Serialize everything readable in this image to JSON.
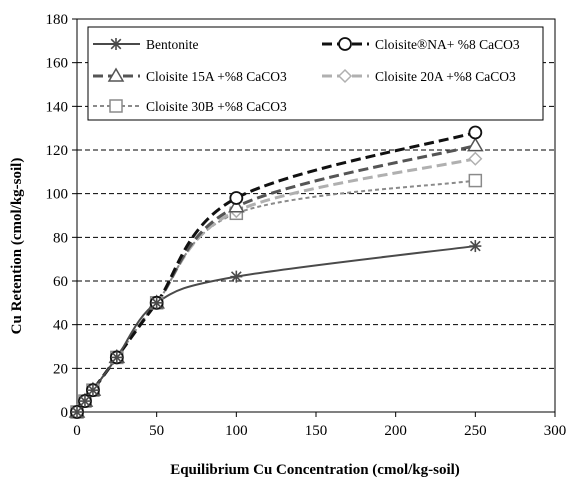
{
  "chart_data": {
    "type": "line",
    "xlabel": "Equilibrium Cu Concentration (cmol/kg-soil)",
    "ylabel": "Cu Retention (cmol/kg-soil)",
    "xlim": [
      0,
      300
    ],
    "ylim": [
      0,
      180
    ],
    "xticks": [
      "0",
      "50",
      "100",
      "150",
      "200",
      "250",
      "300"
    ],
    "yticks": [
      "0",
      "20",
      "40",
      "60",
      "80",
      "100",
      "120",
      "140",
      "160",
      "180"
    ],
    "grid": "horizontal dashed",
    "legend_position": "top inside",
    "series": [
      {
        "name": "Bentonite",
        "marker": "asterisk",
        "color": "#4a4a4a",
        "line_style": "solid",
        "x": [
          0,
          5,
          10,
          25,
          50,
          100,
          250
        ],
        "y": [
          0,
          5,
          10,
          25,
          50,
          62,
          76
        ]
      },
      {
        "name": "Cloisite®NA+ %8 CaCO3",
        "marker": "circle",
        "color": "#111111",
        "line_style": "dashed",
        "x": [
          0,
          5,
          10,
          25,
          50,
          100,
          250
        ],
        "y": [
          0,
          5,
          10,
          25,
          50,
          98,
          128
        ]
      },
      {
        "name": "Cloisite 15A +%8 CaCO3",
        "marker": "triangle",
        "color": "#555555",
        "line_style": "dashed",
        "x": [
          0,
          5,
          10,
          25,
          50,
          100,
          250
        ],
        "y": [
          0,
          5,
          10,
          25,
          50,
          94,
          122
        ]
      },
      {
        "name": "Cloisite 20A +%8 CaCO3",
        "marker": "diamond",
        "color": "#b0b0b0",
        "line_style": "dashed",
        "x": [
          0,
          5,
          10,
          25,
          50,
          100,
          250
        ],
        "y": [
          0,
          5,
          10,
          25,
          50,
          92,
          116
        ]
      },
      {
        "name": "Cloisite 30B +%8 CaCO3",
        "marker": "square",
        "color": "#8a8a8a",
        "line_style": "dotted",
        "x": [
          0,
          5,
          10,
          25,
          50,
          100,
          250
        ],
        "y": [
          0,
          5,
          10,
          25,
          50,
          91,
          106
        ]
      }
    ]
  }
}
